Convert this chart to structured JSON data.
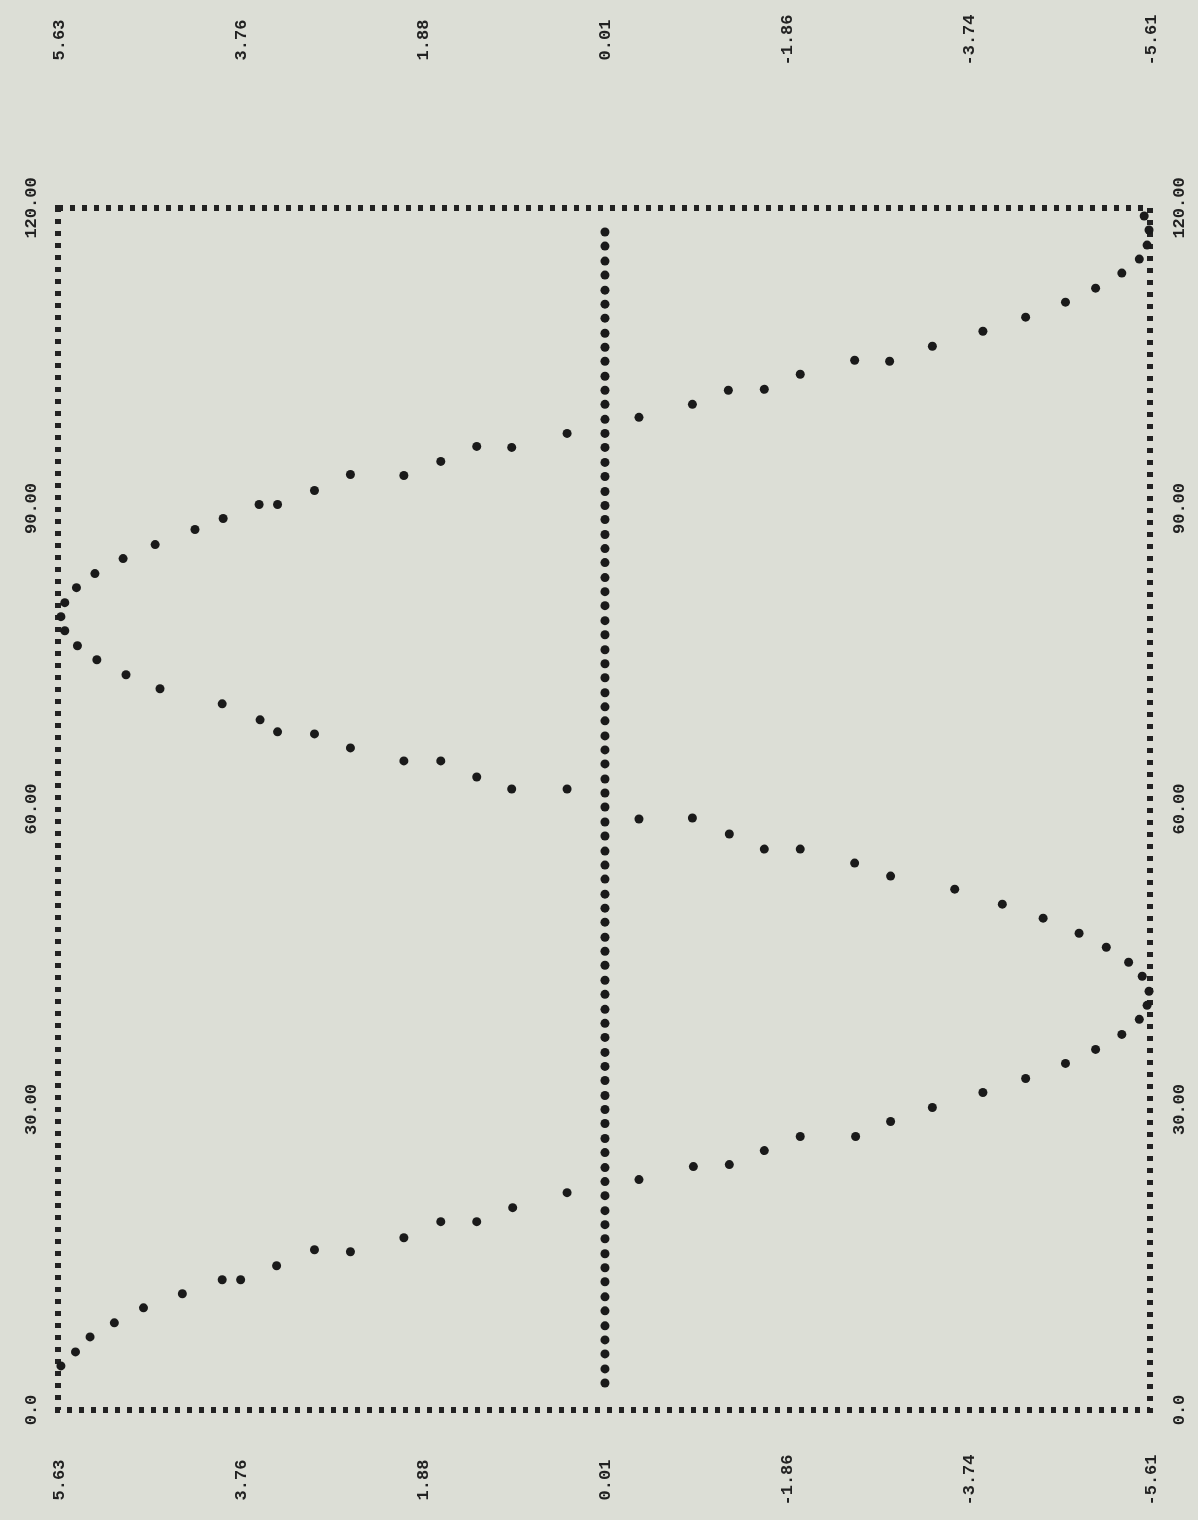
{
  "chart_data": {
    "type": "scatter",
    "marker": "circle",
    "xlim": [
      5.63,
      -5.61
    ],
    "xticks": [
      5.63,
      3.76,
      1.88,
      0.01,
      -1.86,
      -3.74,
      -5.61
    ],
    "x2lim": [
      5.63,
      -5.61
    ],
    "x2ticks": [
      5.63,
      3.76,
      1.88,
      0.01,
      -1.86,
      -3.74,
      -5.61
    ],
    "ylim": [
      0,
      120
    ],
    "yticks": [
      {
        "value": 0,
        "label": "0.0"
      },
      {
        "value": 30,
        "label": "30.00"
      },
      {
        "value": 60,
        "label": "60.00"
      },
      {
        "value": 90,
        "label": "90.00"
      },
      {
        "value": 120,
        "label": "120.00"
      }
    ],
    "y2lim": [
      0,
      120
    ],
    "y2ticks": [
      {
        "value": 0,
        "label": "0.0"
      },
      {
        "value": 30,
        "label": "30.00"
      },
      {
        "value": 60,
        "label": "60.00"
      },
      {
        "value": 90,
        "label": "90.00"
      },
      {
        "value": 120,
        "label": "120.00"
      }
    ],
    "series": [
      {
        "type": "scatter",
        "color": "#1a1a1a",
        "values": [
          4.4,
          5.8,
          7.3,
          8.7,
          10.2,
          11.6,
          13.0,
          13.0,
          14.4,
          16.0,
          15.8,
          17.2,
          18.8,
          18.8,
          20.2,
          21.7,
          23.0,
          24.3,
          24.5,
          25.9,
          27.3,
          27.3,
          28.8,
          30.2,
          31.7,
          33.1,
          34.6,
          36.0,
          37.5,
          39.0,
          40.4,
          41.8,
          43.3,
          44.7,
          46.2,
          47.6,
          49.1,
          50.5,
          52.0,
          53.3,
          54.6,
          56.0,
          56.0,
          57.5,
          59.1,
          59.0,
          62.0,
          62.0,
          63.2,
          64.8,
          64.8,
          66.1,
          67.5,
          67.7,
          68.9,
          70.5,
          72.0,
          73.4,
          74.9,
          76.3,
          77.8,
          79.2,
          80.6,
          82.1,
          83.5,
          85.0,
          86.4,
          87.9,
          89.0,
          90.4,
          90.4,
          91.8,
          93.4,
          93.3,
          94.7,
          96.2,
          96.1,
          97.5,
          99.1,
          100.4,
          101.8,
          101.9,
          103.4,
          104.8,
          104.7,
          106.2,
          107.7,
          109.1,
          110.6,
          112.0,
          113.5,
          114.9,
          116.3,
          117.8,
          119.2
        ],
        "x": [
          5.6,
          5.45,
          5.3,
          5.05,
          4.75,
          4.35,
          3.94,
          3.75,
          3.38,
          2.99,
          2.62,
          2.07,
          1.69,
          1.32,
          0.95,
          0.39,
          -0.35,
          -0.91,
          -1.28,
          -1.64,
          -2.01,
          -2.58,
          -2.94,
          -3.37,
          -3.89,
          -4.33,
          -4.74,
          -5.05,
          -5.32,
          -5.5,
          -5.58,
          -5.6,
          -5.53,
          -5.39,
          -5.16,
          -4.88,
          -4.51,
          -4.09,
          -3.6,
          -2.94,
          -2.57,
          -2.01,
          -1.64,
          -1.28,
          -0.9,
          -0.35,
          0.39,
          0.96,
          1.32,
          1.69,
          2.07,
          2.62,
          2.99,
          3.37,
          3.55,
          3.94,
          4.58,
          4.93,
          5.23,
          5.43,
          5.56,
          5.6,
          5.56,
          5.44,
          5.25,
          4.96,
          4.63,
          4.22,
          3.93,
          3.56,
          3.37,
          2.99,
          2.62,
          2.07,
          1.69,
          1.32,
          0.96,
          0.39,
          -0.35,
          -0.9,
          -1.27,
          -1.64,
          -2.01,
          -2.57,
          -2.93,
          -3.37,
          -3.89,
          -4.33,
          -4.74,
          -5.05,
          -5.32,
          -5.5,
          -5.58,
          -5.6,
          -5.55
        ]
      },
      {
        "color": "#1a1a1a",
        "x": [
          0,
          0,
          0,
          0,
          0,
          0,
          0,
          0,
          0,
          0,
          0,
          0,
          0,
          0,
          0,
          0,
          0,
          0,
          0,
          0,
          0,
          0,
          0,
          0,
          0,
          0,
          0,
          0,
          0,
          0,
          0,
          0,
          0,
          0,
          0,
          0,
          0,
          0,
          0,
          0,
          0,
          0,
          0,
          0,
          0,
          0,
          0,
          0,
          0,
          0,
          0,
          0,
          0,
          0,
          0,
          0,
          0,
          0,
          0,
          0,
          0,
          0,
          0,
          0,
          0,
          0,
          0,
          0,
          0,
          0,
          0,
          0,
          0,
          0,
          0,
          0,
          0,
          0,
          0,
          0,
          0
        ],
        "values": [
          2.7,
          4.1,
          5.6,
          7.0,
          8.4,
          9.9,
          11.3,
          12.8,
          14.2,
          15.6,
          17.1,
          18.5,
          19.9,
          21.4,
          22.8,
          24.2,
          25.7,
          27.1,
          28.6,
          30.0,
          31.4,
          32.9,
          34.3,
          35.7,
          37.2,
          38.6,
          40.0,
          41.5,
          42.9,
          44.4,
          45.8,
          47.2,
          48.7,
          50.1,
          51.5,
          53.0,
          54.4,
          55.8,
          57.3,
          58.7,
          60.2,
          61.6,
          63.0,
          64.5,
          65.9,
          67.3,
          68.8,
          70.2,
          71.6,
          73.1,
          74.5,
          75.9,
          77.4,
          78.8,
          80.3,
          81.7,
          83.1,
          84.6,
          86.0,
          87.4,
          88.9,
          90.3,
          91.7,
          93.2,
          94.6,
          96.1,
          97.5,
          98.9,
          100.4,
          101.8,
          103.2,
          104.7,
          106.1,
          107.5,
          109.0,
          110.4,
          111.8,
          113.3,
          114.7,
          116.2,
          117.6
        ]
      }
    ]
  }
}
